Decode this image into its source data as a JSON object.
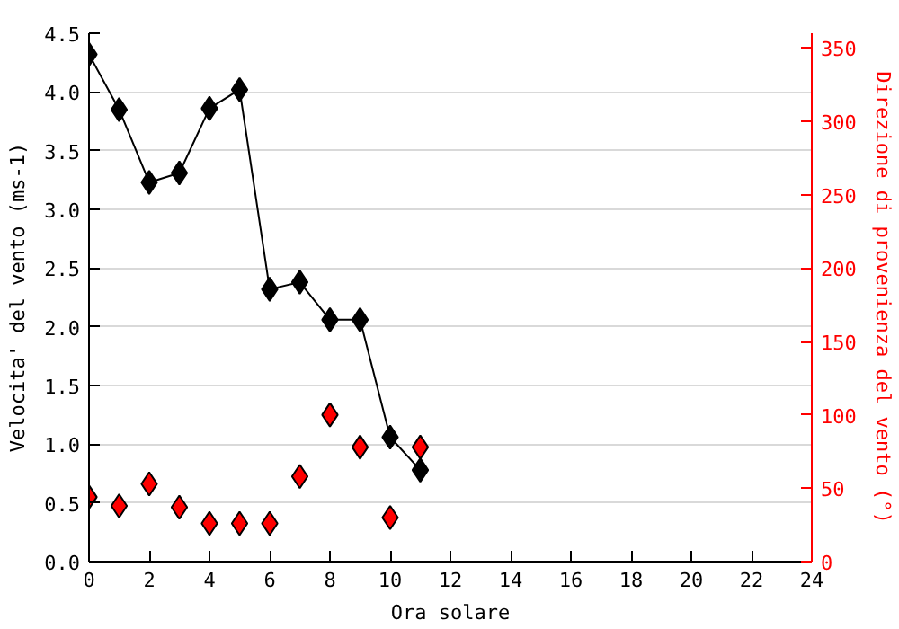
{
  "chart_data": {
    "type": "line",
    "xlabel": "Ora solare",
    "ylabel": "Velocita' del vento (ms-1)",
    "y2label": "Direzione di provenienza del vento (°)",
    "x": [
      0,
      1,
      2,
      3,
      4,
      5,
      6,
      7,
      8,
      9,
      10,
      11
    ],
    "xlim": [
      0,
      24
    ],
    "xticks": [
      0,
      2,
      4,
      6,
      8,
      10,
      12,
      14,
      16,
      18,
      20,
      22,
      24
    ],
    "ylim": [
      0,
      4.5
    ],
    "yticks": [
      {
        "value": 0,
        "label": "0.0"
      },
      0.5,
      {
        "value": 1,
        "label": "1.0"
      },
      1.5,
      {
        "value": 2,
        "label": "2.0"
      },
      2.5,
      {
        "value": 3,
        "label": "3.0"
      },
      3.5,
      {
        "value": 4,
        "label": "4.0"
      },
      4.5
    ],
    "y2lim": [
      0,
      360
    ],
    "y2ticks": [
      0,
      50,
      100,
      150,
      200,
      250,
      300,
      350
    ],
    "grid": "y",
    "marker": "diamond",
    "series": [
      {
        "color": "#000000",
        "values": [
          4.32,
          3.85,
          3.23,
          3.31,
          3.86,
          4.02,
          2.32,
          2.38,
          2.06,
          2.06,
          1.06,
          0.78
        ]
      },
      {
        "type": "scatter",
        "axis": "y2",
        "color": "#ff0000",
        "values": [
          44,
          38,
          53,
          37,
          26,
          26,
          26,
          58,
          100,
          78,
          30,
          78
        ]
      }
    ]
  }
}
